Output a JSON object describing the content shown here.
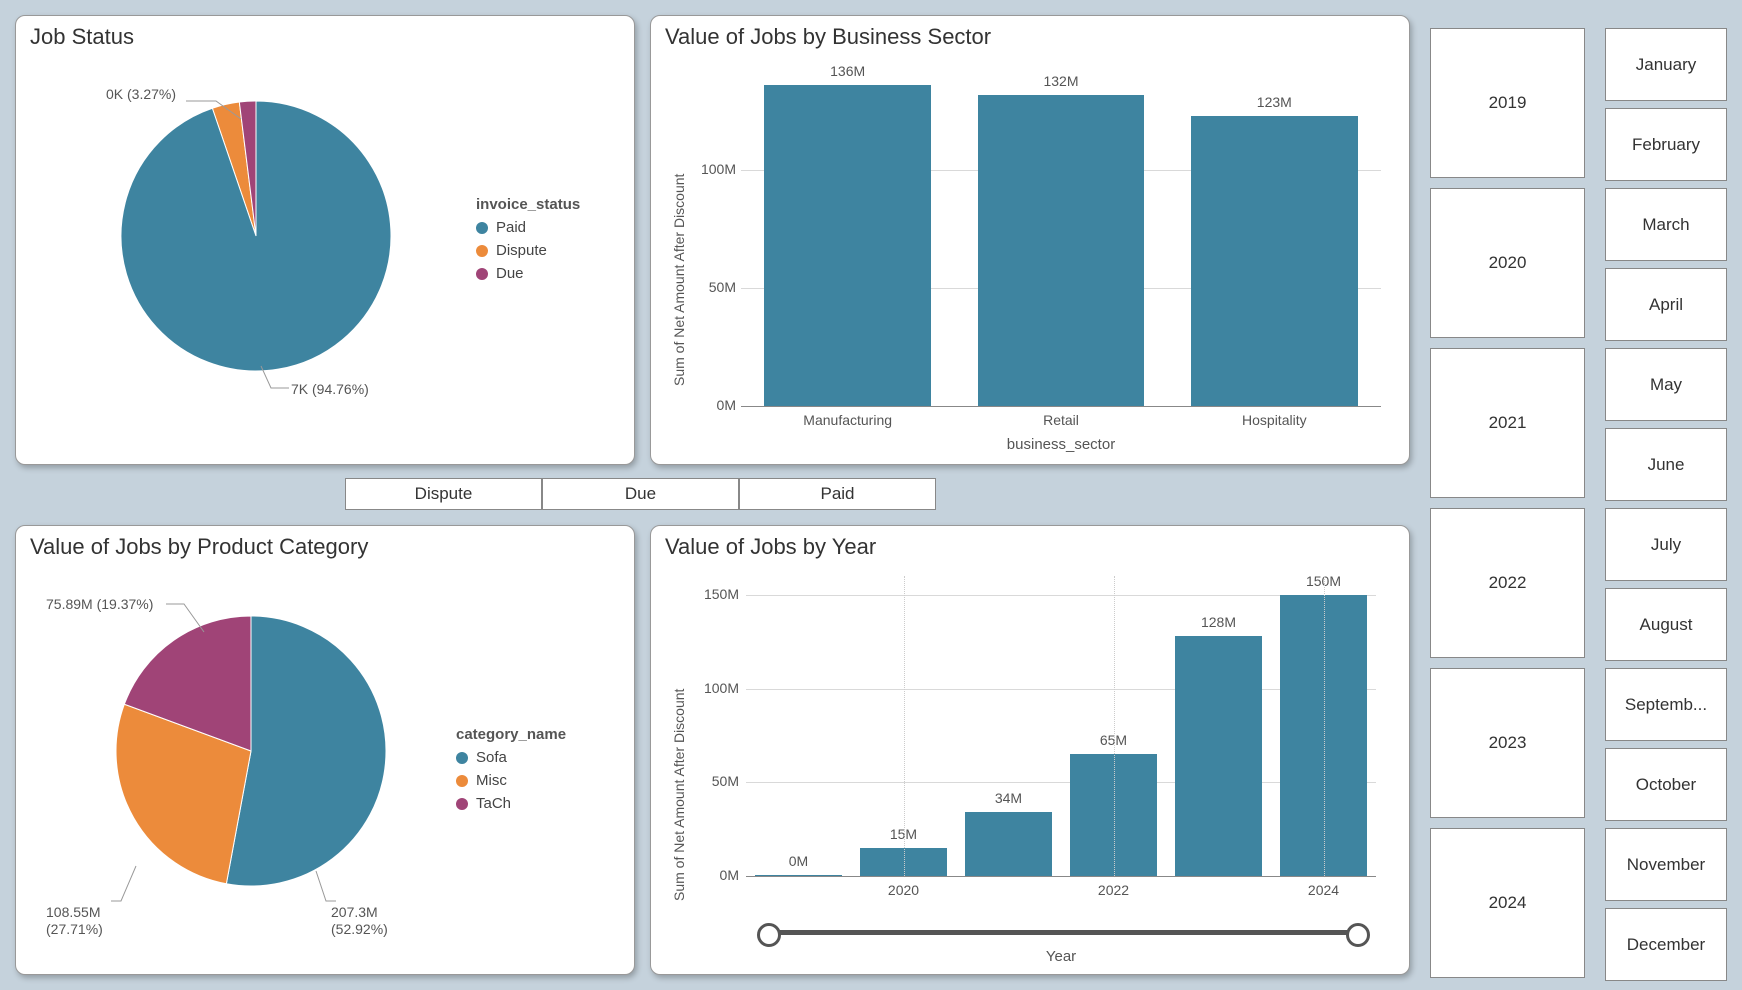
{
  "colors": {
    "teal": "#3e84a0",
    "orange": "#ec8b3b",
    "magenta": "#a04477",
    "bg": "#c5d2dc",
    "card_bg": "#ffffff",
    "grid": "#d9d9d9",
    "text": "#555555"
  },
  "job_status": {
    "title": "Job Status",
    "legend_title": "invoice_status",
    "slices": [
      {
        "label": "Paid",
        "color": "#3e84a0",
        "value": 7000,
        "pct": 94.76,
        "callout": "7K (94.76%)"
      },
      {
        "label": "Dispute",
        "color": "#ec8b3b",
        "value": 240,
        "pct": 3.27,
        "callout": "0K (3.27%)"
      },
      {
        "label": "Due",
        "color": "#a04477",
        "value": 150,
        "pct": 1.97,
        "callout": ""
      }
    ]
  },
  "by_sector": {
    "title": "Value of Jobs by Business Sector",
    "y_label": "Sum of Net Amount After Discount",
    "x_label": "business_sector",
    "y_ticks": [
      "0M",
      "50M",
      "100M"
    ],
    "y_max": 140,
    "bars": [
      {
        "label": "Manufacturing",
        "value": 136,
        "data_label": "136M",
        "color": "#3e84a0"
      },
      {
        "label": "Retail",
        "value": 132,
        "data_label": "132M",
        "color": "#3e84a0"
      },
      {
        "label": "Hospitality",
        "value": 123,
        "data_label": "123M",
        "color": "#3e84a0"
      }
    ]
  },
  "status_filter": {
    "buttons": [
      "Dispute",
      "Due",
      "Paid"
    ]
  },
  "by_category": {
    "title": "Value of Jobs by Product Category",
    "legend_title": "category_name",
    "slices": [
      {
        "label": "Sofa",
        "color": "#3e84a0",
        "value": 207.3,
        "pct": 52.92,
        "callout_line1": "207.3M",
        "callout_line2": "(52.92%)"
      },
      {
        "label": "Misc",
        "color": "#ec8b3b",
        "value": 108.55,
        "pct": 27.71,
        "callout_line1": "108.55M",
        "callout_line2": "(27.71%)"
      },
      {
        "label": "TaCh",
        "color": "#a04477",
        "value": 75.89,
        "pct": 19.37,
        "callout_line1": "75.89M (19.37%)",
        "callout_line2": ""
      }
    ]
  },
  "by_year": {
    "title": "Value of Jobs by Year",
    "y_label": "Sum of Net Amount After Discount",
    "x_label": "Year",
    "y_ticks": [
      "0M",
      "50M",
      "100M",
      "150M"
    ],
    "y_max": 160,
    "x_ticks": [
      "2020",
      "2022",
      "2024"
    ],
    "bars": [
      {
        "value": 0,
        "data_label": "0M",
        "color": "#3e84a0"
      },
      {
        "value": 15,
        "data_label": "15M",
        "color": "#3e84a0"
      },
      {
        "value": 34,
        "data_label": "34M",
        "color": "#3e84a0"
      },
      {
        "value": 65,
        "data_label": "65M",
        "color": "#3e84a0"
      },
      {
        "value": 128,
        "data_label": "128M",
        "color": "#3e84a0"
      },
      {
        "value": 150,
        "data_label": "150M",
        "color": "#3e84a0"
      }
    ]
  },
  "year_slicer": {
    "items": [
      "2019",
      "2020",
      "2021",
      "2022",
      "2023",
      "2024"
    ]
  },
  "month_slicer": {
    "items": [
      "January",
      "February",
      "March",
      "April",
      "May",
      "June",
      "July",
      "August",
      "Septemb...",
      "October",
      "November",
      "December"
    ]
  }
}
